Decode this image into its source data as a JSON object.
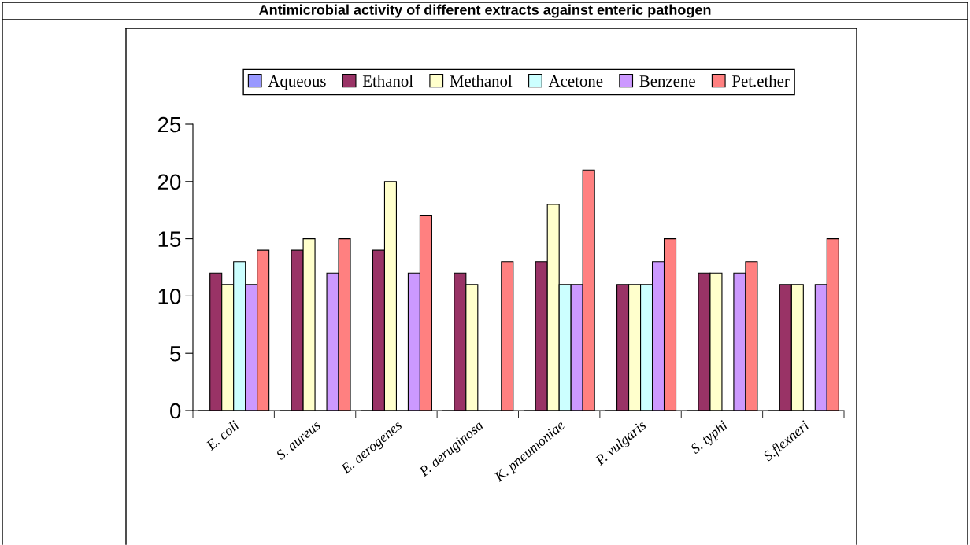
{
  "chart_data": {
    "type": "bar",
    "title": "Antimicrobial activity of different extracts against enteric pathogen",
    "categories": [
      "E. coli",
      "S. aureus",
      "E. aerogenes",
      "P. aeruginosa",
      "K. pneumoniae",
      "P. vulgaris",
      "S. typhi",
      "S.flexneri"
    ],
    "series": [
      {
        "name": "Aqueous",
        "color": "#9999ff",
        "values": [
          0,
          0,
          0,
          0,
          0,
          0,
          0,
          0
        ]
      },
      {
        "name": "Ethanol",
        "color": "#993366",
        "values": [
          12,
          14,
          14,
          12,
          13,
          11,
          12,
          11
        ]
      },
      {
        "name": "Methanol",
        "color": "#ffffcc",
        "values": [
          11,
          15,
          20,
          11,
          18,
          11,
          12,
          11
        ]
      },
      {
        "name": "Acetone",
        "color": "#ccffff",
        "values": [
          13,
          0,
          0,
          0,
          11,
          11,
          0,
          0
        ]
      },
      {
        "name": "Benzene",
        "color": "#cc99ff",
        "values": [
          11,
          12,
          12,
          0,
          11,
          13,
          12,
          11
        ]
      },
      {
        "name": "Pet.ether",
        "color": "#ff8080",
        "values": [
          14,
          15,
          17,
          13,
          21,
          15,
          13,
          15
        ]
      }
    ],
    "ylim": [
      0,
      25
    ],
    "yticks": [
      0,
      5,
      10,
      15,
      20,
      25
    ],
    "grid": false,
    "legend": "top"
  }
}
